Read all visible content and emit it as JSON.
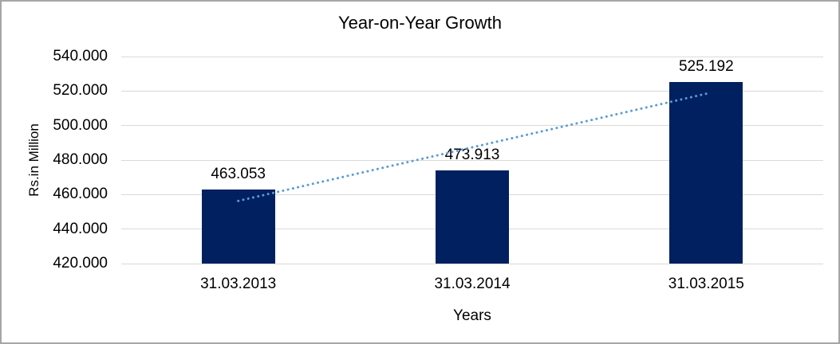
{
  "chart_data": {
    "type": "bar",
    "title": "Year-on-Year Growth",
    "xlabel": "Years",
    "ylabel": "Rs.in Million",
    "categories": [
      "31.03.2013",
      "31.03.2014",
      "31.03.2015"
    ],
    "values": [
      463.053,
      473.913,
      525.192
    ],
    "data_labels": [
      "463.053",
      "473.913",
      "525.192"
    ],
    "ylim": [
      420,
      540
    ],
    "ytick_step": 20,
    "ytick_labels": [
      "540.000",
      "520.000",
      "500.000",
      "480.000",
      "460.000",
      "440.000",
      "420.000"
    ],
    "grid": true,
    "legend_position": "none",
    "trendline": {
      "kind": "linear",
      "style": "dotted",
      "color": "#5B9BD5"
    },
    "colors": {
      "bar": "#002060",
      "gridline": "#D9D9D9",
      "frame_border": "#A6A6A6",
      "text": "#000000"
    }
  }
}
